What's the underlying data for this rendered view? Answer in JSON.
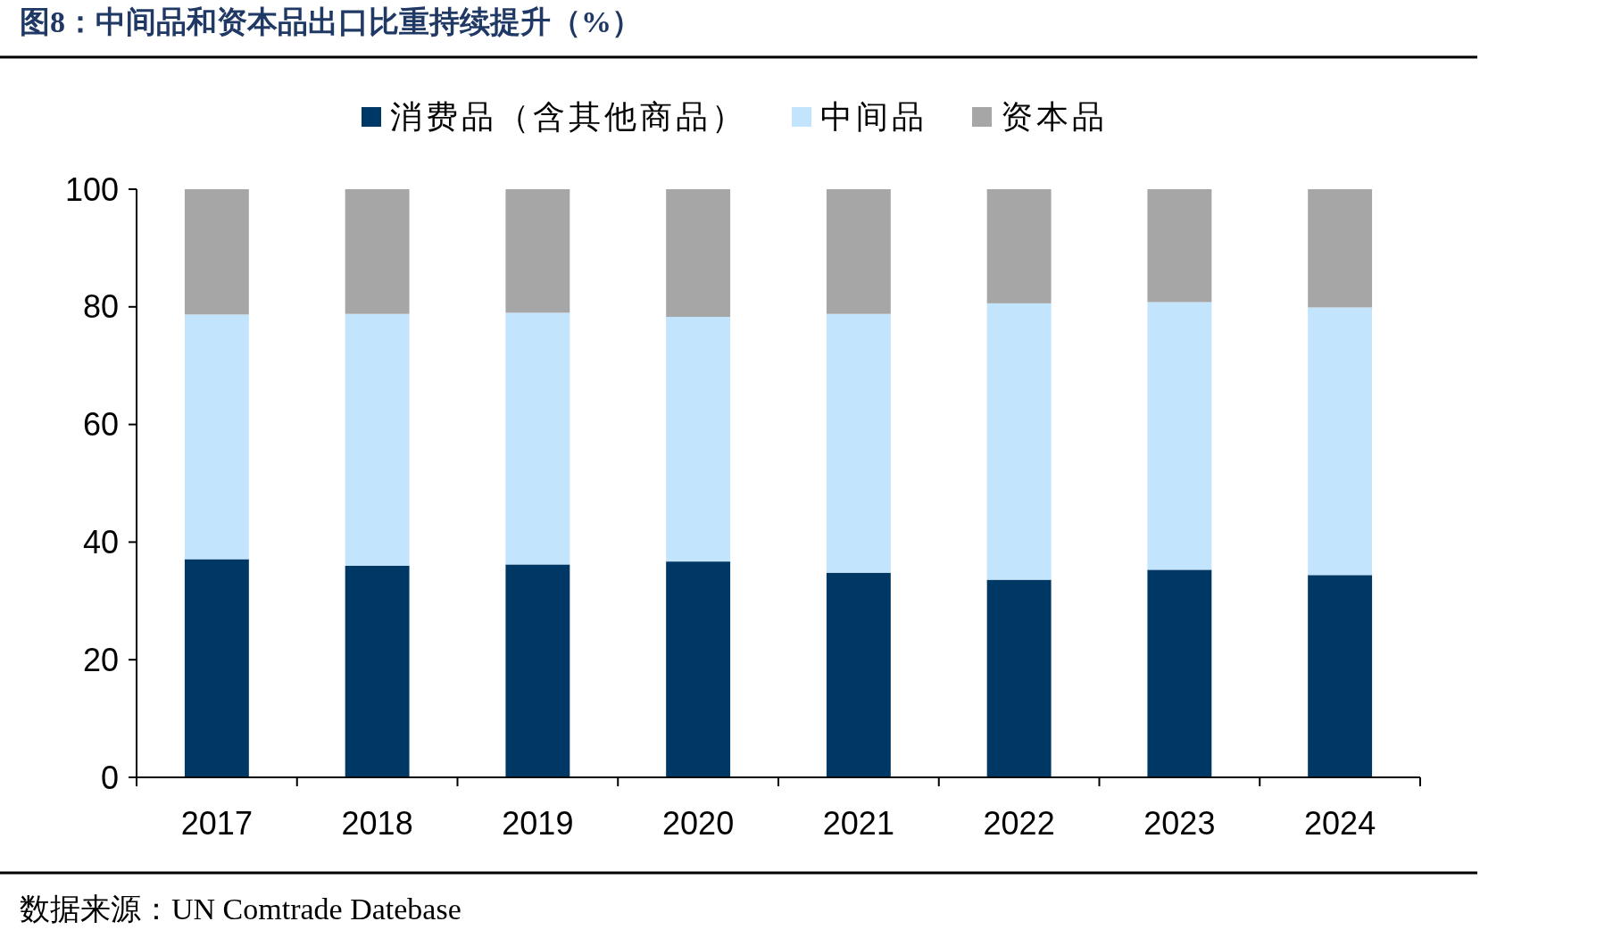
{
  "chart_data": {
    "type": "bar",
    "stacked": true,
    "title": "图8：中间品和资本品出口比重持续提升（%）",
    "categories": [
      "2017",
      "2018",
      "2019",
      "2020",
      "2021",
      "2022",
      "2023",
      "2024"
    ],
    "series": [
      {
        "name": "消费品（含其他商品）",
        "color": "#003865",
        "values": [
          37.1,
          36.0,
          36.2,
          36.7,
          34.8,
          33.6,
          35.3,
          34.4
        ]
      },
      {
        "name": "中间品",
        "color": "#c3e4fd",
        "values": [
          41.6,
          42.8,
          42.8,
          41.6,
          44.0,
          47.0,
          45.5,
          45.5
        ]
      },
      {
        "name": "资本品",
        "color": "#a6a6a6",
        "values": [
          21.3,
          21.2,
          21.0,
          21.7,
          21.2,
          19.4,
          19.2,
          20.1
        ]
      }
    ],
    "ylim": [
      0,
      100
    ],
    "yticks": [
      0,
      20,
      40,
      60,
      80,
      100
    ],
    "grid": false,
    "legend": "top",
    "annotations": [
      "数据来源：UN Comtrade Datebase"
    ]
  }
}
